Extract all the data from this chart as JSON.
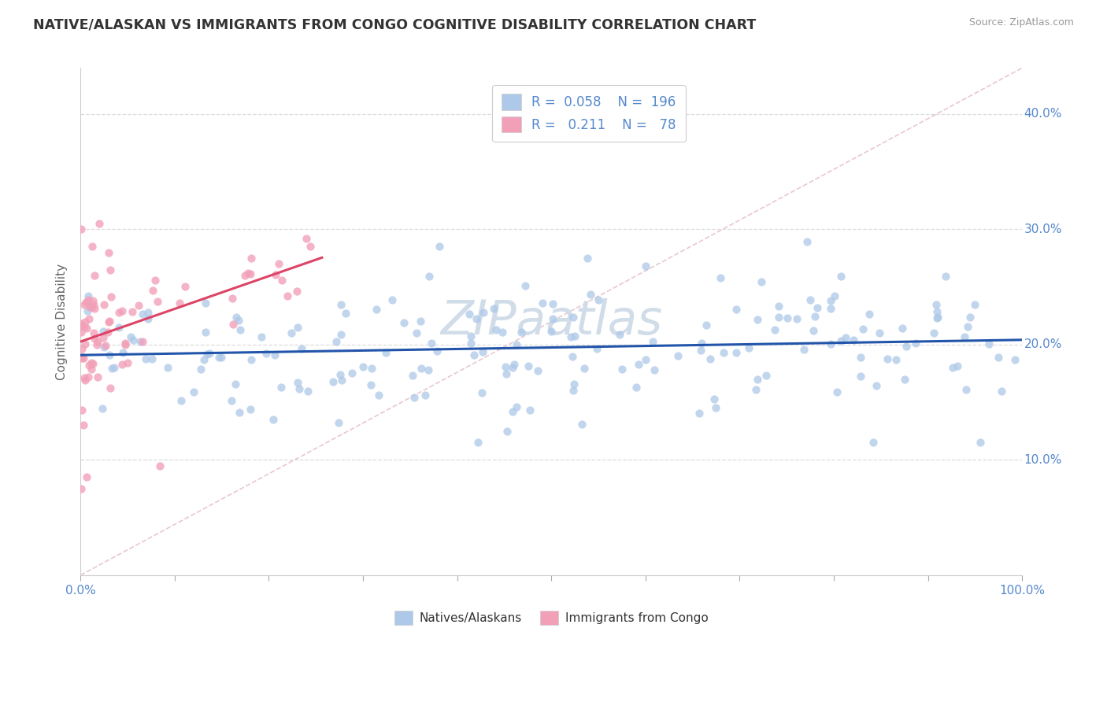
{
  "title": "NATIVE/ALASKAN VS IMMIGRANTS FROM CONGO COGNITIVE DISABILITY CORRELATION CHART",
  "source": "Source: ZipAtlas.com",
  "ylabel": "Cognitive Disability",
  "blue_color": "#adc8e8",
  "pink_color": "#f2a0b8",
  "blue_line_color": "#2255aa",
  "pink_line_color": "#dd4466",
  "diagonal_color": "#e8c8d0",
  "diagonal_style": "--",
  "watermark_text": "ZIPaatlas",
  "watermark_color": "#d0dce8",
  "legend_R1": "0.058",
  "legend_N1": "196",
  "legend_R2": "0.211",
  "legend_N2": "78",
  "tick_label_color": "#5588cc",
  "ytick_labels_right": [
    "10.0%",
    "20.0%",
    "30.0%",
    "40.0%"
  ],
  "ytick_vals_right": [
    0.1,
    0.2,
    0.3,
    0.4
  ],
  "xtick_label_left": "0.0%",
  "xtick_label_right": "100.0%",
  "ylim": [
    0.0,
    0.44
  ],
  "xlim": [
    0.0,
    1.0
  ]
}
